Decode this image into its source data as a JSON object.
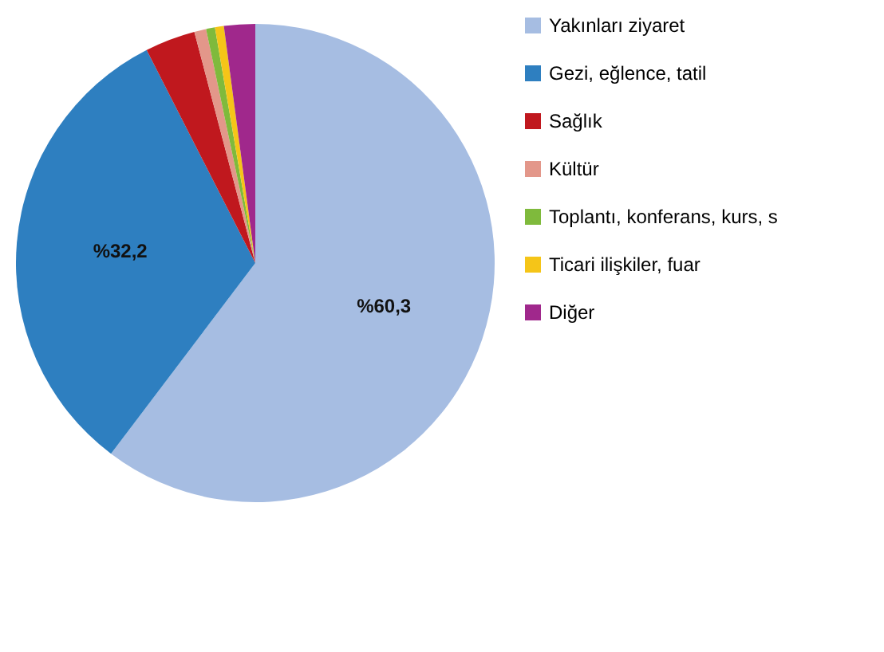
{
  "chart_data": {
    "type": "pie",
    "categories": [
      "Yakınları ziyaret",
      "Gezi, eğlence, tatil",
      "Sağlık",
      "Kültür",
      "Toplantı, konferans, kurs, s",
      "Ticari ilişkiler, fuar",
      "Diğer"
    ],
    "values": [
      60.3,
      32.2,
      3.4,
      0.8,
      0.6,
      0.6,
      2.1
    ],
    "colors": [
      "#a6bde2",
      "#2e7fc0",
      "#c0181e",
      "#e3978a",
      "#7fba3c",
      "#f5c518",
      "#a0288c"
    ],
    "value_labels": [
      "%60,3",
      "%32,2",
      null,
      null,
      null,
      null,
      null
    ],
    "legend": "right"
  }
}
